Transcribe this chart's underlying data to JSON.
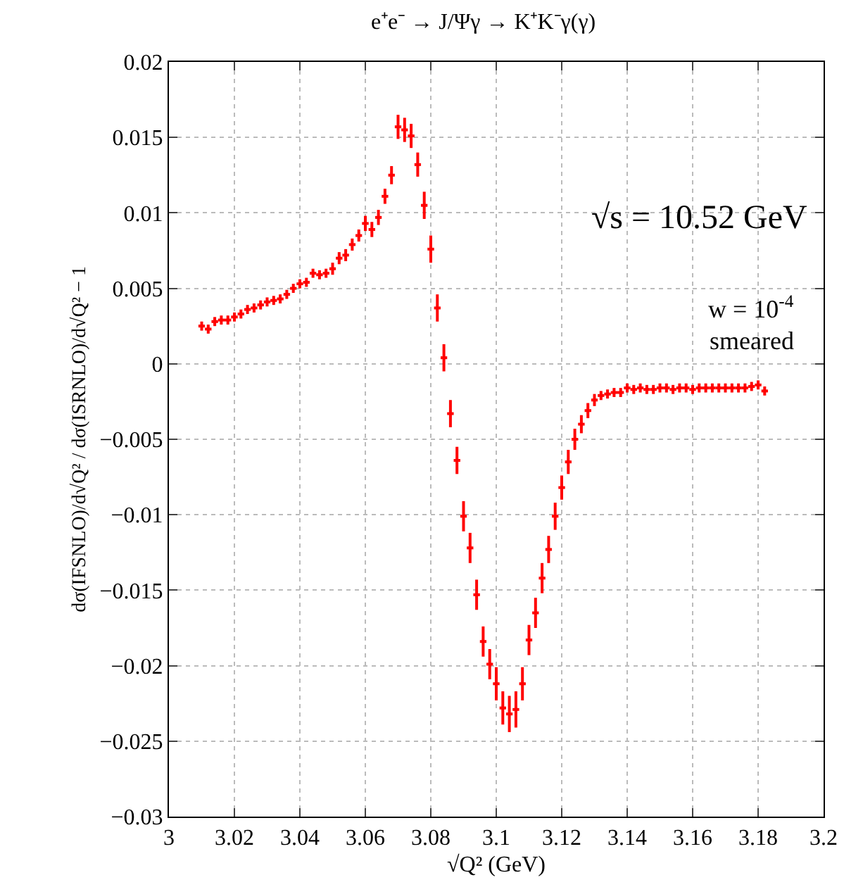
{
  "chart_data": {
    "type": "scatter",
    "title": "e⁺e⁻ → J/Ψγ → K⁺K⁻γ(γ)",
    "xlabel": "√Q² (GeV)",
    "ylabel": "dσ(IFSNLO)/d√Q² / dσ(ISRNLO)/d√Q² − 1",
    "x": [
      3.01,
      3.012,
      3.014,
      3.016,
      3.018,
      3.02,
      3.022,
      3.024,
      3.026,
      3.028,
      3.03,
      3.032,
      3.034,
      3.036,
      3.038,
      3.04,
      3.042,
      3.044,
      3.046,
      3.048,
      3.05,
      3.052,
      3.054,
      3.056,
      3.058,
      3.06,
      3.062,
      3.064,
      3.066,
      3.068,
      3.07,
      3.072,
      3.074,
      3.076,
      3.078,
      3.08,
      3.082,
      3.084,
      3.086,
      3.088,
      3.09,
      3.092,
      3.094,
      3.096,
      3.098,
      3.1,
      3.102,
      3.104,
      3.106,
      3.108,
      3.11,
      3.112,
      3.114,
      3.116,
      3.118,
      3.12,
      3.122,
      3.124,
      3.126,
      3.128,
      3.13,
      3.132,
      3.134,
      3.136,
      3.138,
      3.14,
      3.142,
      3.144,
      3.146,
      3.148,
      3.15,
      3.152,
      3.154,
      3.156,
      3.158,
      3.16,
      3.162,
      3.164,
      3.166,
      3.168,
      3.17,
      3.172,
      3.174,
      3.176,
      3.178,
      3.18,
      3.182
    ],
    "series": [
      {
        "color": "#ff0000",
        "values": [
          0.0025,
          0.0023,
          0.0028,
          0.0029,
          0.0029,
          0.0031,
          0.0033,
          0.0036,
          0.0037,
          0.0039,
          0.0041,
          0.0042,
          0.0043,
          0.0046,
          0.005,
          0.0053,
          0.0054,
          0.006,
          0.0059,
          0.006,
          0.0063,
          0.007,
          0.0072,
          0.0079,
          0.0085,
          0.0093,
          0.0089,
          0.0097,
          0.0111,
          0.0125,
          0.0157,
          0.0155,
          0.0151,
          0.0132,
          0.0105,
          0.0076,
          0.0037,
          0.0004,
          -0.0033,
          -0.0064,
          -0.0101,
          -0.0122,
          -0.0153,
          -0.0184,
          -0.0199,
          -0.0212,
          -0.0228,
          -0.0232,
          -0.0229,
          -0.0212,
          -0.0183,
          -0.0165,
          -0.0142,
          -0.0123,
          -0.0101,
          -0.0082,
          -0.0065,
          -0.005,
          -0.004,
          -0.0031,
          -0.0024,
          -0.0021,
          -0.002,
          -0.0019,
          -0.0019,
          -0.0016,
          -0.0017,
          -0.0016,
          -0.0017,
          -0.0017,
          -0.0016,
          -0.0016,
          -0.0017,
          -0.0016,
          -0.0016,
          -0.0017,
          -0.0016,
          -0.0016,
          -0.0016,
          -0.0016,
          -0.0016,
          -0.0016,
          -0.0016,
          -0.0016,
          -0.0015,
          -0.0014,
          -0.0018
        ],
        "errors": [
          0.0003,
          0.0003,
          0.0003,
          0.0003,
          0.0003,
          0.0003,
          0.0003,
          0.0003,
          0.0003,
          0.0003,
          0.0003,
          0.0003,
          0.0003,
          0.0003,
          0.0003,
          0.0003,
          0.0003,
          0.0003,
          0.0003,
          0.0003,
          0.0004,
          0.0004,
          0.0004,
          0.0004,
          0.0004,
          0.0005,
          0.0005,
          0.0005,
          0.0005,
          0.0006,
          0.0008,
          0.0008,
          0.0008,
          0.0008,
          0.0009,
          0.0009,
          0.0009,
          0.0009,
          0.0009,
          0.0009,
          0.001,
          0.001,
          0.001,
          0.001,
          0.001,
          0.0011,
          0.0011,
          0.0012,
          0.0012,
          0.0011,
          0.001,
          0.001,
          0.001,
          0.0009,
          0.0009,
          0.0008,
          0.0008,
          0.0007,
          0.0006,
          0.0005,
          0.0004,
          0.0003,
          0.0003,
          0.0003,
          0.0003,
          0.0003,
          0.0003,
          0.0003,
          0.0003,
          0.0003,
          0.0003,
          0.0003,
          0.0003,
          0.0003,
          0.0003,
          0.0003,
          0.0003,
          0.0003,
          0.0003,
          0.0003,
          0.0003,
          0.0003,
          0.0003,
          0.0003,
          0.0003,
          0.0003,
          0.0003
        ],
        "xerrors": [
          0.001,
          0.001,
          0.001,
          0.001,
          0.001,
          0.001,
          0.001,
          0.001,
          0.001,
          0.001,
          0.001,
          0.001,
          0.001,
          0.001,
          0.001,
          0.001,
          0.001,
          0.001,
          0.001,
          0.001,
          0.001,
          0.001,
          0.001,
          0.001,
          0.001,
          0.001,
          0.001,
          0.001,
          0.001,
          0.001,
          0.001,
          0.001,
          0.001,
          0.001,
          0.001,
          0.001,
          0.001,
          0.001,
          0.001,
          0.001,
          0.001,
          0.001,
          0.001,
          0.001,
          0.001,
          0.001,
          0.001,
          0.001,
          0.001,
          0.001,
          0.001,
          0.001,
          0.001,
          0.001,
          0.001,
          0.001,
          0.001,
          0.001,
          0.001,
          0.001,
          0.001,
          0.001,
          0.001,
          0.001,
          0.001,
          0.001,
          0.001,
          0.001,
          0.001,
          0.001,
          0.001,
          0.001,
          0.001,
          0.001,
          0.001,
          0.001,
          0.001,
          0.001,
          0.001,
          0.001,
          0.001,
          0.001,
          0.001,
          0.001,
          0.001,
          0.001,
          0.001
        ]
      }
    ],
    "xlim": [
      3,
      3.2
    ],
    "xticks": [
      3,
      3.02,
      3.04,
      3.06,
      3.08,
      3.1,
      3.12,
      3.14,
      3.16,
      3.18,
      3.2
    ],
    "ylim": [
      -0.03,
      0.02
    ],
    "yticks": [
      -0.03,
      -0.025,
      -0.02,
      -0.015,
      -0.01,
      -0.005,
      0,
      0.005,
      0.01,
      0.015,
      0.02
    ],
    "annotations": [
      "√s = 10.52 GeV",
      "w = 10$^{-4}$",
      "smeared"
    ],
    "grid": true,
    "marker": "cross"
  }
}
